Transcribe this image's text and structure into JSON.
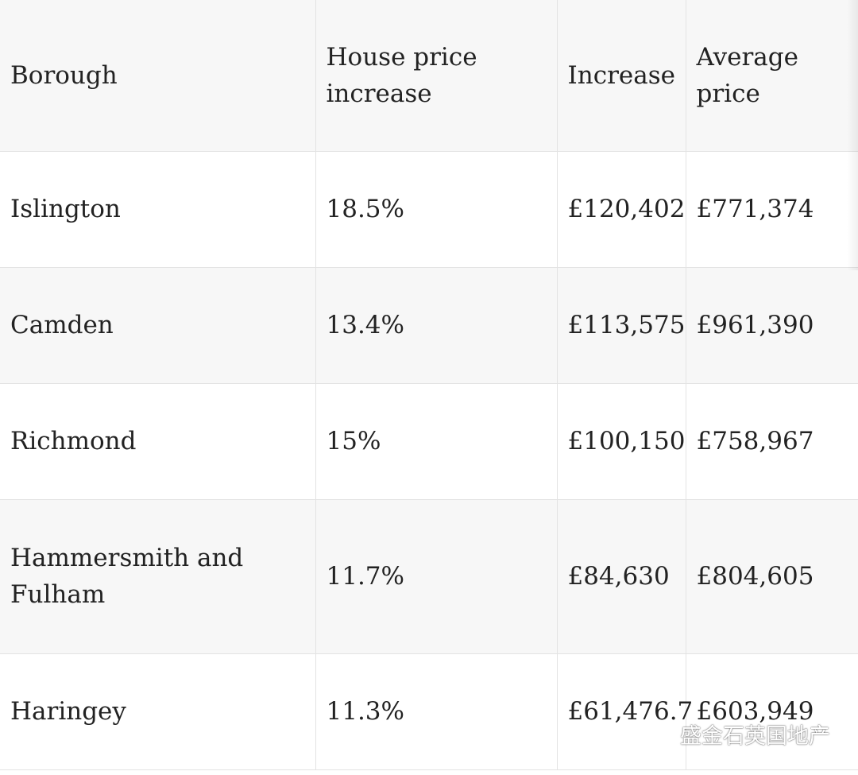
{
  "table": {
    "headers": [
      "Borough",
      "House price increase",
      "Increase",
      "Average price"
    ],
    "rows": [
      [
        "Islington",
        "18.5%",
        "£120,402",
        "£771,374"
      ],
      [
        "Camden",
        "13.4%",
        "£113,575",
        "£961,390"
      ],
      [
        "Richmond",
        "15%",
        "£100,150",
        "£758,967"
      ],
      [
        "Hammersmith and Fulham",
        "11.7%",
        "£84,630",
        "£804,605"
      ],
      [
        "Haringey",
        "11.3%",
        "£61,476.7",
        "£603,949"
      ]
    ]
  },
  "watermark": {
    "text": "盛金石英国地产",
    "icon": "wechat-icon"
  }
}
